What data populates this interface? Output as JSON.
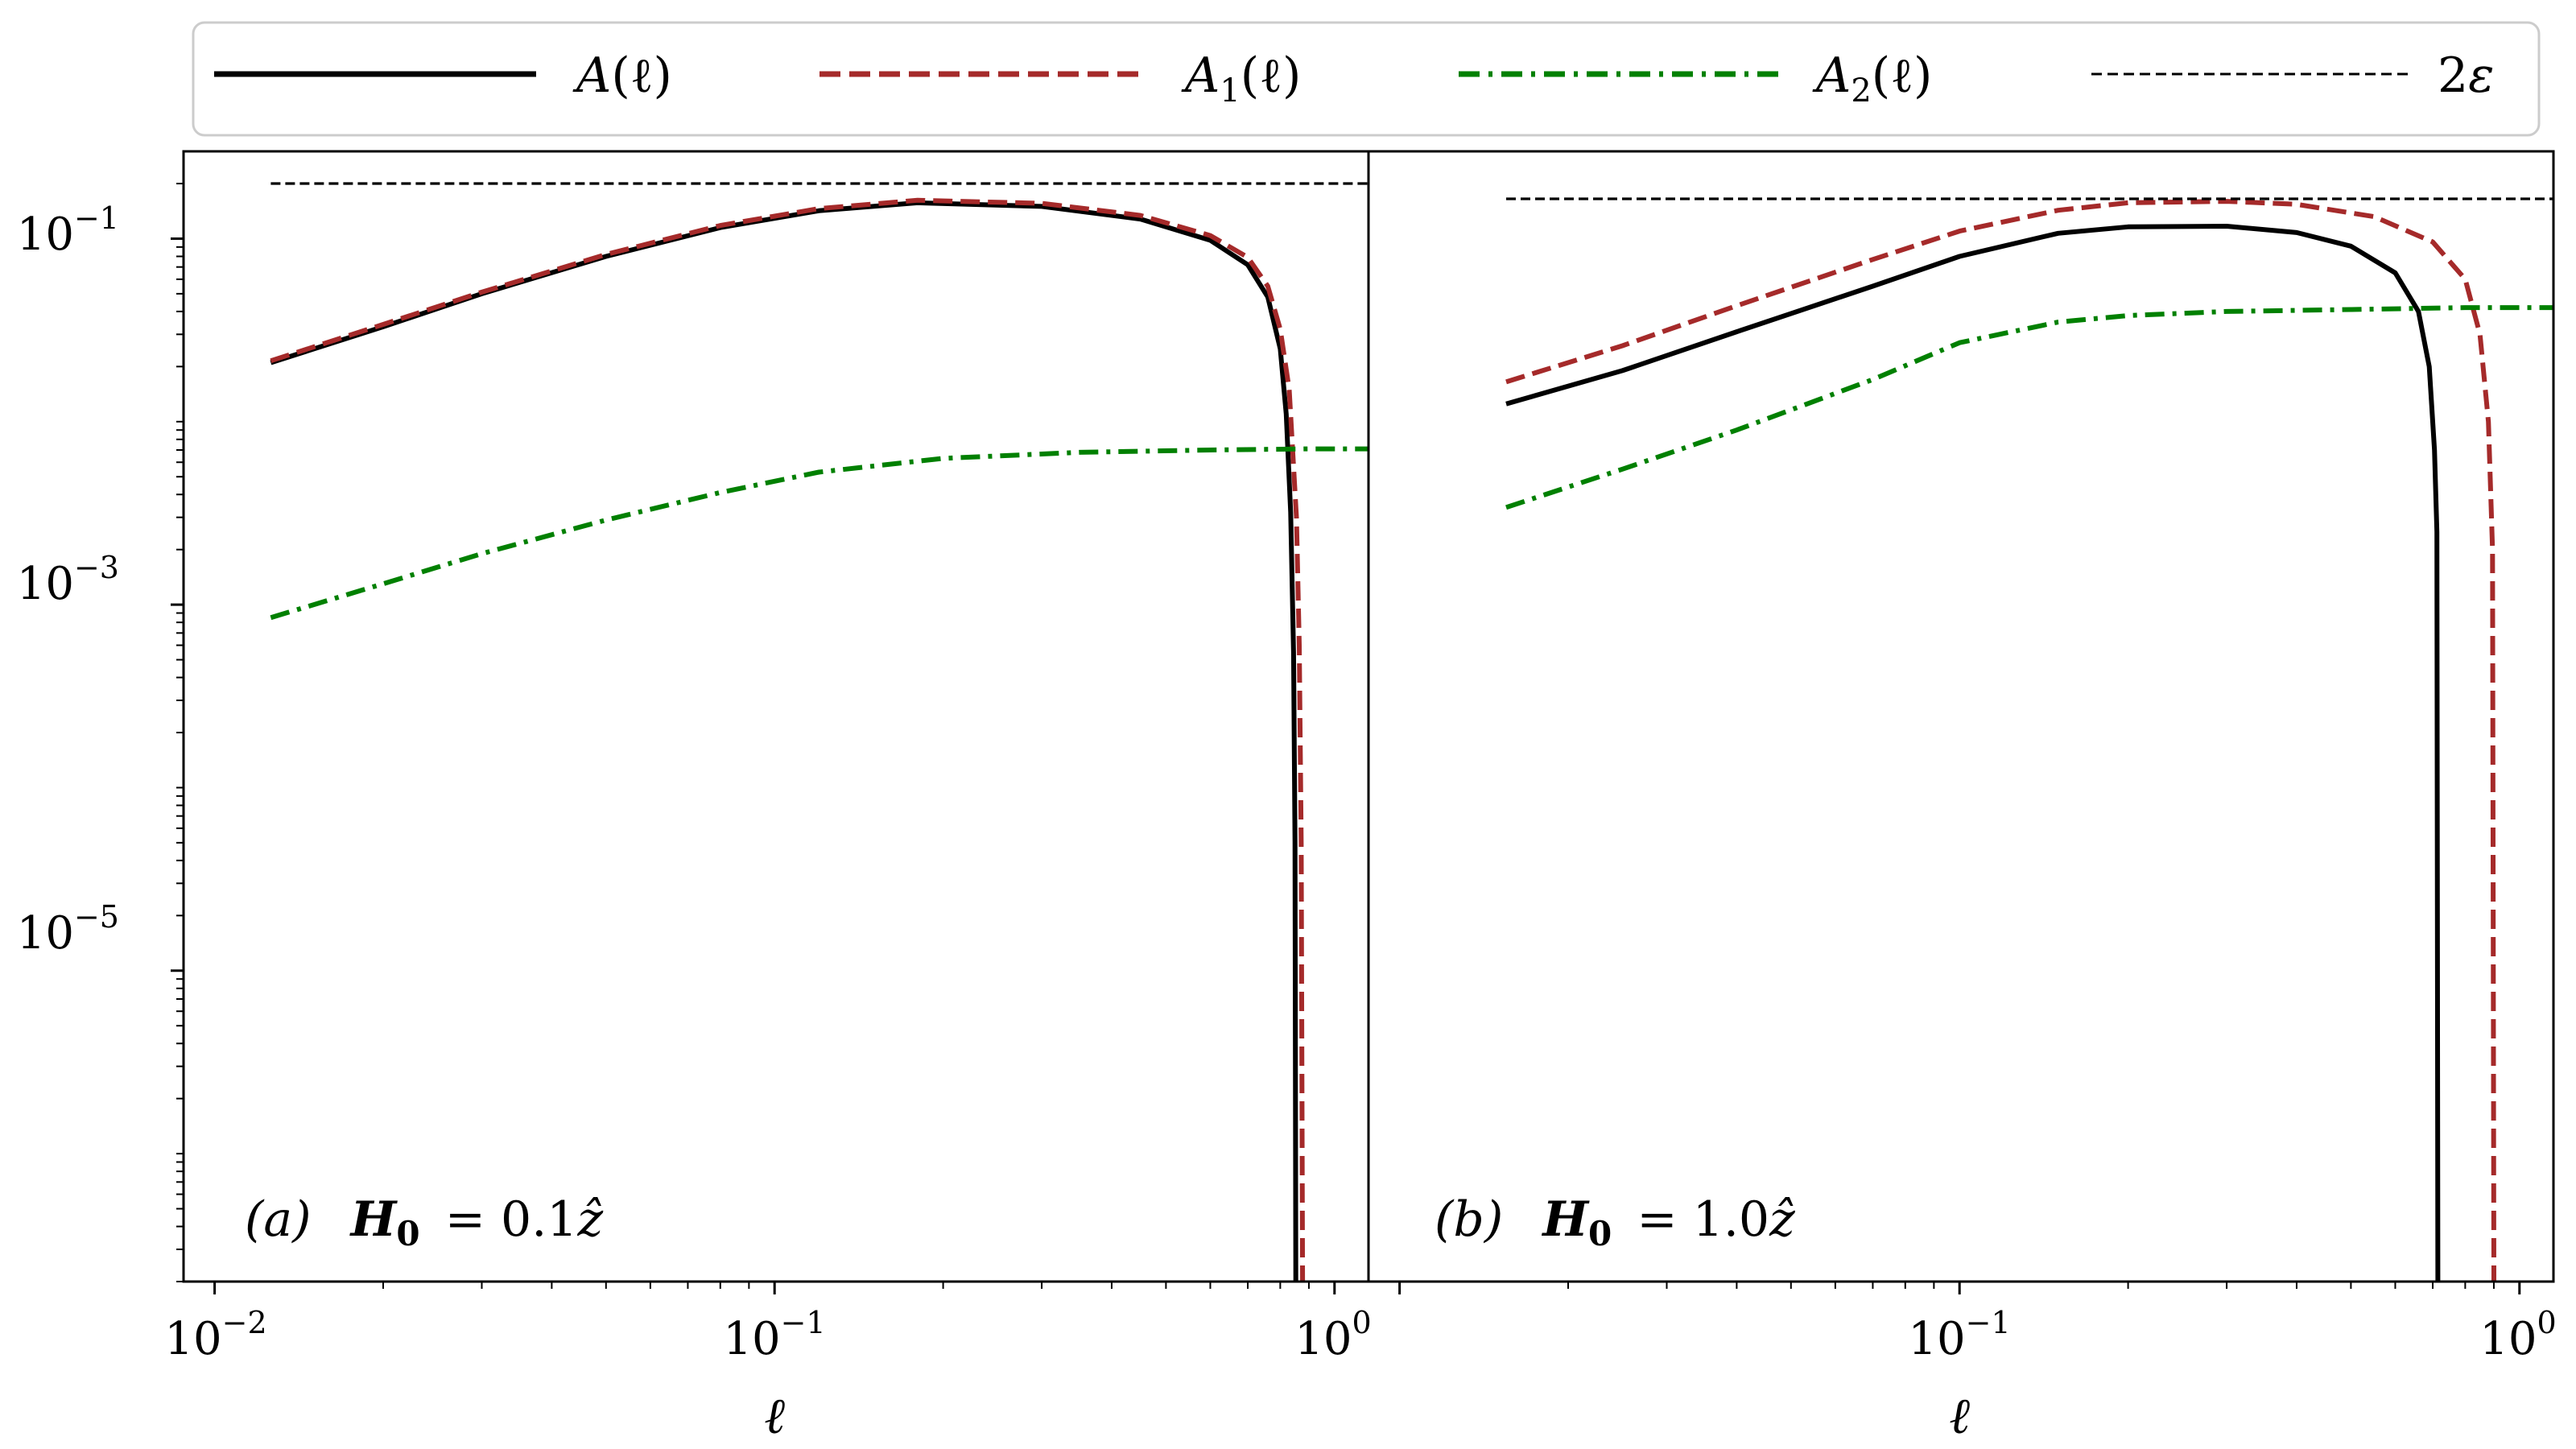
{
  "colors": {
    "A": "#000000",
    "A1": "#a52a2a",
    "A2": "#008000",
    "two_eps": "#000000"
  },
  "legend": {
    "A": {
      "name": "A",
      "arg": "(ℓ)"
    },
    "A1": {
      "name": "A",
      "sub": "1",
      "arg": "(ℓ)"
    },
    "A2": {
      "name": "A",
      "sub": "2",
      "arg": "(ℓ)"
    },
    "two_eps": {
      "coef": "2",
      "sym": "ε"
    }
  },
  "xlabel": "ℓ",
  "x_ticks": [
    {
      "base": "10",
      "exp": "−2"
    },
    {
      "base": "10",
      "exp": "−1"
    },
    {
      "base": "10",
      "exp": "0"
    }
  ],
  "y_ticks": [
    {
      "base": "10",
      "exp": "−1"
    },
    {
      "base": "10",
      "exp": "−3"
    },
    {
      "base": "10",
      "exp": "−5"
    }
  ],
  "chart_data": [
    {
      "type": "line",
      "scale": {
        "x": "log",
        "y": "log"
      },
      "xlim": [
        0.0088,
        1.15
      ],
      "ylim": [
        2e-07,
        0.3
      ],
      "xlabel": "ℓ",
      "annotation": {
        "label": "(a)",
        "field": "H",
        "field_sub": "0",
        "eq": "= 0.1",
        "unit": "ẑ"
      },
      "series": [
        {
          "key": "A",
          "name": "A(ℓ)",
          "style": "solid",
          "x": [
            0.0126,
            0.02,
            0.03,
            0.05,
            0.08,
            0.12,
            0.18,
            0.3,
            0.45,
            0.6,
            0.7,
            0.76,
            0.8,
            0.82,
            0.835,
            0.845,
            0.85,
            0.853
          ],
          "y": [
            0.021,
            0.033,
            0.05,
            0.08,
            0.115,
            0.142,
            0.157,
            0.15,
            0.128,
            0.098,
            0.072,
            0.048,
            0.025,
            0.011,
            0.0032,
            0.00055,
            5e-05,
            2e-07
          ]
        },
        {
          "key": "A1",
          "name": "A₁(ℓ)",
          "style": "dashed",
          "x": [
            0.0126,
            0.02,
            0.03,
            0.05,
            0.08,
            0.12,
            0.18,
            0.3,
            0.45,
            0.6,
            0.7,
            0.76,
            0.8,
            0.83,
            0.855,
            0.865,
            0.872,
            0.877
          ],
          "y": [
            0.0215,
            0.034,
            0.051,
            0.082,
            0.118,
            0.146,
            0.162,
            0.156,
            0.134,
            0.104,
            0.079,
            0.055,
            0.032,
            0.015,
            0.003,
            0.0006,
            5e-05,
            2e-07
          ]
        },
        {
          "key": "A2",
          "name": "A₂(ℓ)",
          "style": "dashdot",
          "x": [
            0.0126,
            0.02,
            0.03,
            0.05,
            0.08,
            0.12,
            0.2,
            0.35,
            0.6,
            0.9,
            1.15
          ],
          "y": [
            0.00085,
            0.0013,
            0.0019,
            0.0029,
            0.0041,
            0.0053,
            0.0063,
            0.0068,
            0.007,
            0.0071,
            0.0071
          ]
        },
        {
          "key": "two_eps",
          "name": "2ε",
          "style": "thin-dashed",
          "x": [
            0.0126,
            1.15
          ],
          "y": [
            0.2,
            0.2
          ]
        }
      ]
    },
    {
      "type": "line",
      "scale": {
        "x": "log",
        "y": "log"
      },
      "xlim": [
        0.0088,
        1.15
      ],
      "ylim": [
        2e-07,
        0.3
      ],
      "xlabel": "ℓ",
      "annotation": {
        "label": "(b)",
        "field": "H",
        "field_sub": "0",
        "eq": "= 1.0",
        "unit": "ẑ"
      },
      "series": [
        {
          "key": "A",
          "name": "A(ℓ)",
          "style": "solid",
          "x": [
            0.0155,
            0.025,
            0.04,
            0.07,
            0.1,
            0.15,
            0.2,
            0.3,
            0.4,
            0.5,
            0.6,
            0.66,
            0.69,
            0.705,
            0.712,
            0.715
          ],
          "y": [
            0.0125,
            0.019,
            0.031,
            0.055,
            0.08,
            0.107,
            0.116,
            0.117,
            0.108,
            0.091,
            0.065,
            0.04,
            0.02,
            0.007,
            0.0025,
            2e-07
          ]
        },
        {
          "key": "A1",
          "name": "A₁(ℓ)",
          "style": "dashed",
          "x": [
            0.0155,
            0.025,
            0.04,
            0.07,
            0.1,
            0.15,
            0.2,
            0.3,
            0.4,
            0.55,
            0.7,
            0.8,
            0.85,
            0.88,
            0.895,
            0.9
          ],
          "y": [
            0.0165,
            0.026,
            0.043,
            0.077,
            0.11,
            0.143,
            0.157,
            0.16,
            0.154,
            0.132,
            0.096,
            0.06,
            0.03,
            0.01,
            0.002,
            2e-07
          ]
        },
        {
          "key": "A2",
          "name": "A₂(ℓ)",
          "style": "dashdot",
          "x": [
            0.0155,
            0.025,
            0.04,
            0.07,
            0.1,
            0.15,
            0.2,
            0.3,
            0.5,
            0.8,
            1.15
          ],
          "y": [
            0.0034,
            0.0055,
            0.009,
            0.017,
            0.027,
            0.035,
            0.038,
            0.04,
            0.041,
            0.042,
            0.042
          ]
        },
        {
          "key": "two_eps",
          "name": "2ε",
          "style": "thin-dashed",
          "x": [
            0.0155,
            1.15
          ],
          "y": [
            0.165,
            0.165
          ]
        }
      ]
    }
  ]
}
